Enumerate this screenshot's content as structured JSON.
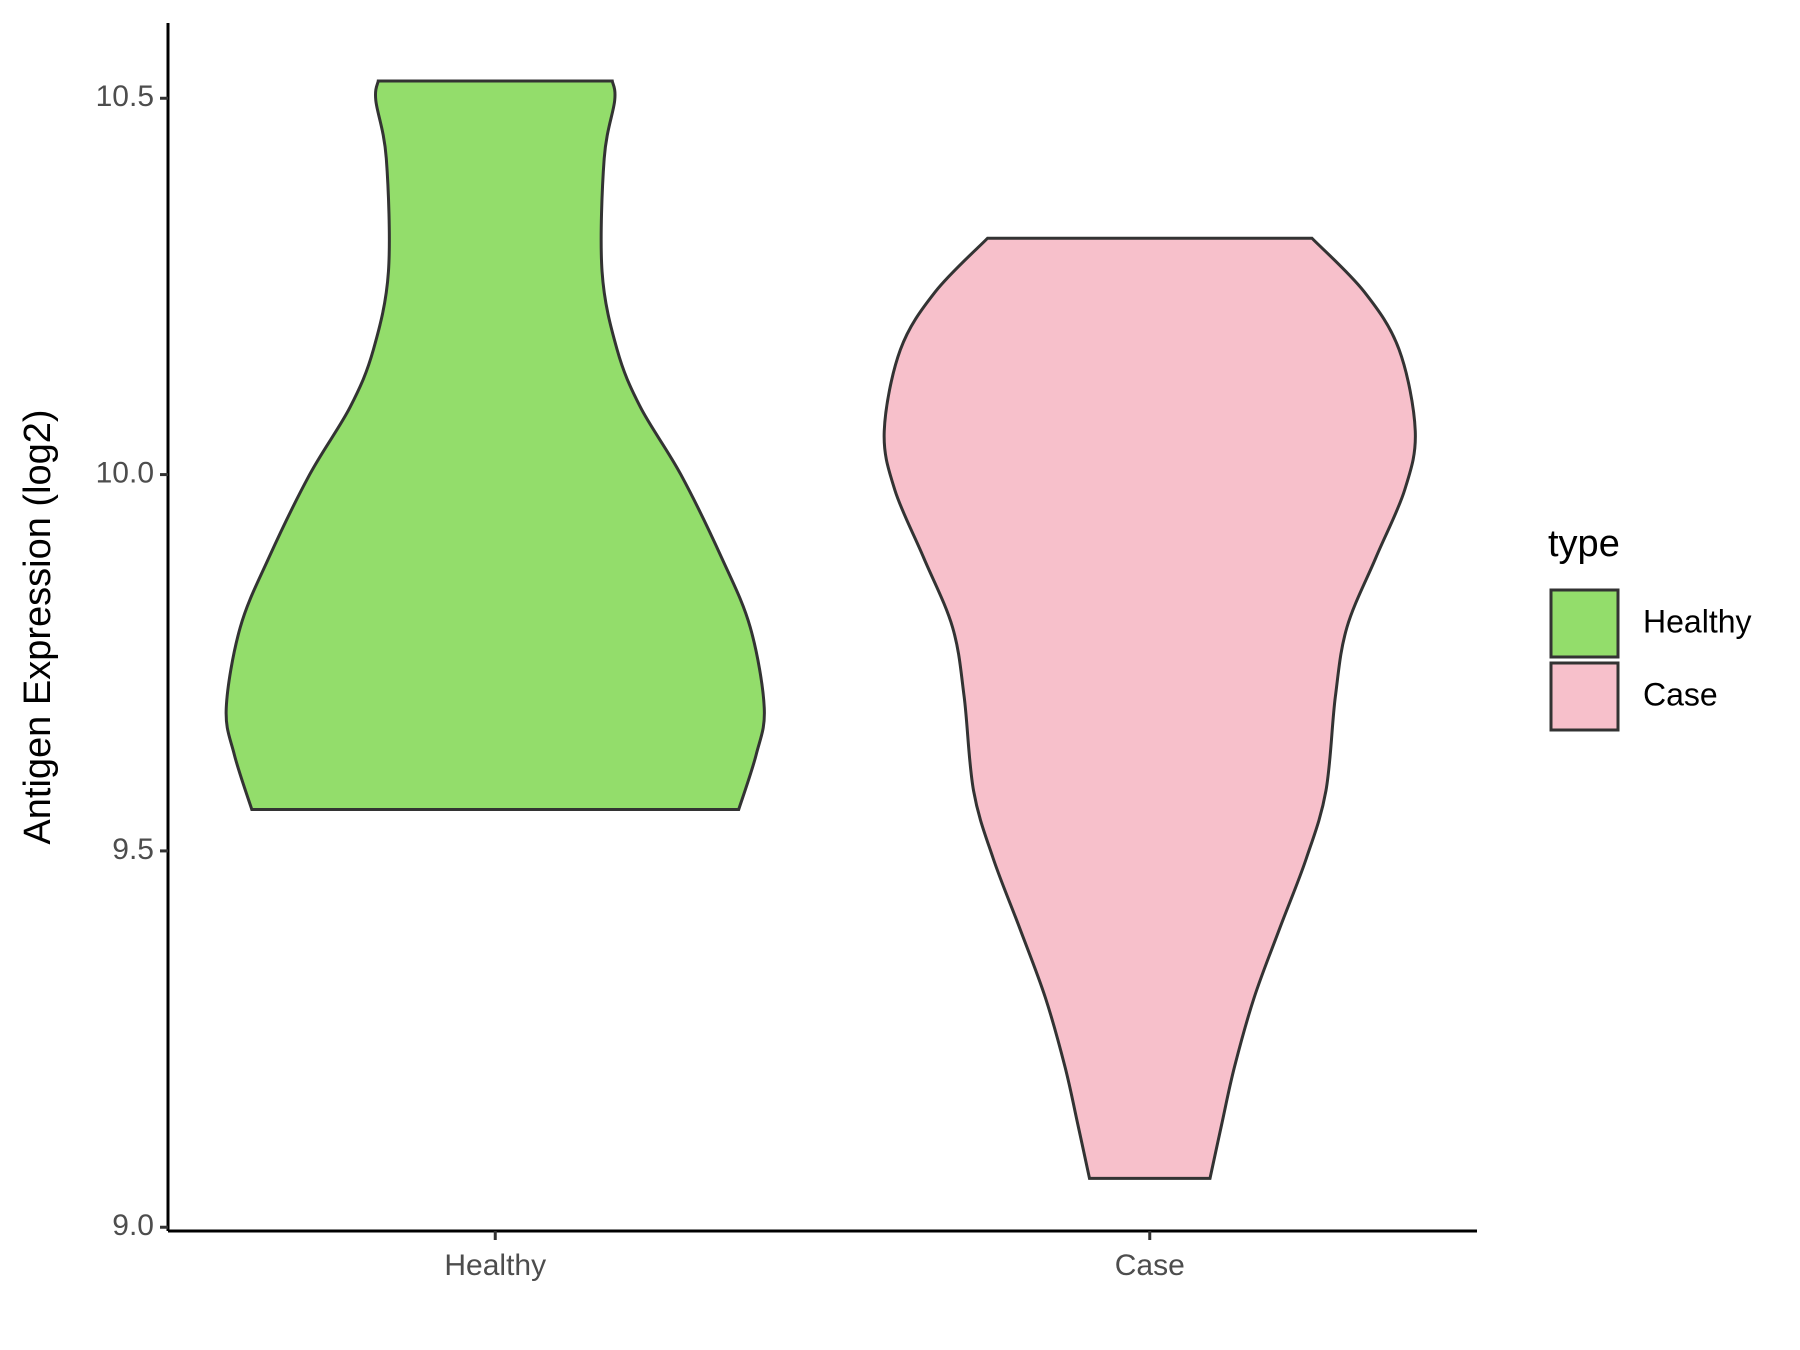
{
  "chart_data": {
    "type": "violin",
    "y_label": "Antigen Expression (log2)",
    "legend_title": "type",
    "ylim": [
      8.995,
      10.6
    ],
    "yticks": [
      {
        "value": 9.0,
        "label": "9.0"
      },
      {
        "value": 9.5,
        "label": "9.5"
      },
      {
        "value": 10.0,
        "label": "10.0"
      },
      {
        "value": 10.5,
        "label": "10.5"
      }
    ],
    "categories": [
      "Healthy",
      "Case"
    ],
    "legend_position": "right",
    "series": [
      {
        "name": "Healthy",
        "color": "#93dd6b",
        "y": [
          10.523,
          10.497,
          10.42,
          10.27,
          10.166,
          10.09,
          10.0,
          9.89,
          9.797,
          9.69,
          9.628,
          9.555
        ],
        "density": [
          0.435,
          0.444,
          0.405,
          0.397,
          0.453,
          0.539,
          0.69,
          0.841,
          0.948,
          1.0,
          0.97,
          0.905
        ]
      },
      {
        "name": "Case",
        "color": "#f7c0cb",
        "y": [
          10.314,
          10.243,
          10.166,
          10.058,
          9.98,
          9.89,
          9.797,
          9.705,
          9.58,
          9.49,
          9.397,
          9.305,
          9.213,
          9.136,
          9.065
        ],
        "density": [
          0.603,
          0.797,
          0.927,
          0.987,
          0.948,
          0.841,
          0.733,
          0.69,
          0.655,
          0.582,
          0.483,
          0.388,
          0.315,
          0.267,
          0.224
        ]
      }
    ]
  }
}
